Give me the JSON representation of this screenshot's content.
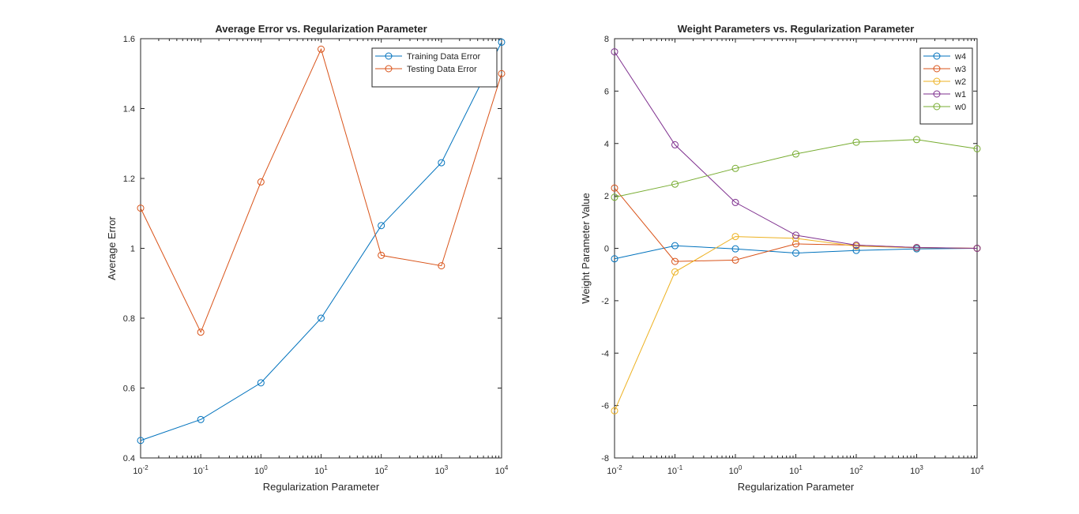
{
  "chart_data": [
    {
      "type": "line",
      "title": "Average Error vs. Regularization Parameter",
      "xlabel": "Regularization Parameter",
      "ylabel": "Average Error",
      "xscale": "log",
      "xlim": [
        0.01,
        10000
      ],
      "ylim": [
        0.4,
        1.6
      ],
      "x": [
        0.01,
        0.1,
        1,
        10,
        100,
        1000,
        10000
      ],
      "x_tick_labels": [
        {
          "base": "10",
          "exp": "-2"
        },
        {
          "base": "10",
          "exp": "-1"
        },
        {
          "base": "10",
          "exp": "0"
        },
        {
          "base": "10",
          "exp": "1"
        },
        {
          "base": "10",
          "exp": "2"
        },
        {
          "base": "10",
          "exp": "3"
        },
        {
          "base": "10",
          "exp": "4"
        }
      ],
      "y_ticks": [
        0.4,
        0.6,
        0.8,
        1,
        1.2,
        1.4,
        1.6
      ],
      "y_tick_labels": [
        "0.4",
        "0.6",
        "0.8",
        "1",
        "1.2",
        "1.4",
        "1.6"
      ],
      "grid": false,
      "legend_position": "top-right",
      "series": [
        {
          "name": "Training Data Error",
          "color": "#0072BD",
          "values": [
            0.45,
            0.51,
            0.615,
            0.8,
            1.065,
            1.245,
            1.59
          ]
        },
        {
          "name": "Testing Data Error",
          "color": "#D95319",
          "values": [
            1.115,
            0.76,
            1.19,
            1.57,
            0.98,
            0.95,
            1.5
          ]
        }
      ]
    },
    {
      "type": "line",
      "title": "Weight Parameters vs. Regularization Parameter",
      "xlabel": "Regularization Parameter",
      "ylabel": "Weight Parameter Value",
      "xscale": "log",
      "xlim": [
        0.01,
        10000
      ],
      "ylim": [
        -8,
        8
      ],
      "x": [
        0.01,
        0.1,
        1,
        10,
        100,
        1000,
        10000
      ],
      "x_tick_labels": [
        {
          "base": "10",
          "exp": "-2"
        },
        {
          "base": "10",
          "exp": "-1"
        },
        {
          "base": "10",
          "exp": "0"
        },
        {
          "base": "10",
          "exp": "1"
        },
        {
          "base": "10",
          "exp": "2"
        },
        {
          "base": "10",
          "exp": "3"
        },
        {
          "base": "10",
          "exp": "4"
        }
      ],
      "y_ticks": [
        -8,
        -6,
        -4,
        -2,
        0,
        2,
        4,
        6,
        8
      ],
      "y_tick_labels": [
        "-8",
        "-6",
        "-4",
        "-2",
        "0",
        "2",
        "4",
        "6",
        "8"
      ],
      "grid": false,
      "legend_position": "top-right",
      "series": [
        {
          "name": "w4",
          "color": "#0072BD",
          "values": [
            -0.4,
            0.1,
            -0.02,
            -0.18,
            -0.08,
            -0.02,
            0.0
          ]
        },
        {
          "name": "w3",
          "color": "#D95319",
          "values": [
            2.3,
            -0.5,
            -0.45,
            0.17,
            0.12,
            0.03,
            0.0
          ]
        },
        {
          "name": "w2",
          "color": "#EDB120",
          "values": [
            -6.2,
            -0.9,
            0.45,
            0.38,
            0.08,
            0.02,
            0.0
          ]
        },
        {
          "name": "w1",
          "color": "#7E2F8E",
          "values": [
            7.5,
            3.95,
            1.75,
            0.5,
            0.12,
            0.03,
            0.0
          ]
        },
        {
          "name": "w0",
          "color": "#77AC30",
          "values": [
            1.95,
            2.45,
            3.05,
            3.6,
            4.05,
            4.15,
            3.8
          ]
        }
      ]
    }
  ]
}
